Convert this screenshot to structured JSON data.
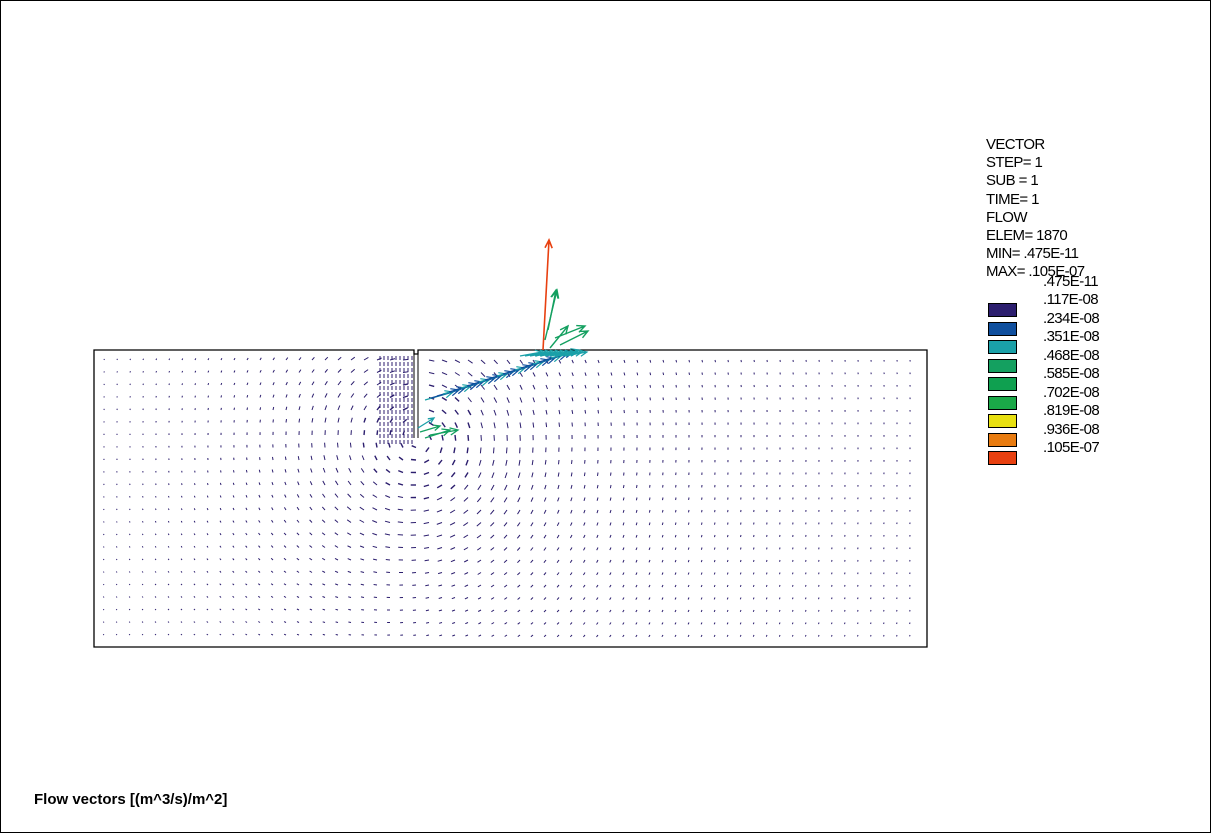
{
  "legend": {
    "header": [
      "VECTOR",
      "STEP= 1",
      "SUB = 1",
      "TIME= 1",
      "FLOW",
      "ELEM= 1870",
      "MIN= .475E-11",
      "MAX= .105E-07"
    ],
    "scale": [
      {
        "value": ".475E-11",
        "color": "#2c1e6e"
      },
      {
        "value": ".117E-08",
        "color": "#0f4f9e"
      },
      {
        "value": ".234E-08",
        "color": "#1aa0a8"
      },
      {
        "value": ".351E-08",
        "color": "#14a060"
      },
      {
        "value": ".468E-08",
        "color": "#0fa050"
      },
      {
        "value": ".585E-08",
        "color": "#1aa848"
      },
      {
        "value": ".702E-08",
        "color": "#e8e010"
      },
      {
        "value": ".819E-08",
        "color": "#e87b10"
      },
      {
        "value": ".936E-08",
        "color": "#e84010"
      },
      {
        "value": ".105E-07",
        "color": ""
      }
    ]
  },
  "caption": "Flow vectors [(m^3/s)/m^2]",
  "colors": {
    "low": "#2c1e6e",
    "mid": "#0f4f9e",
    "teal": "#1aa0a8",
    "green": "#14a060",
    "max": "#e84010"
  }
}
